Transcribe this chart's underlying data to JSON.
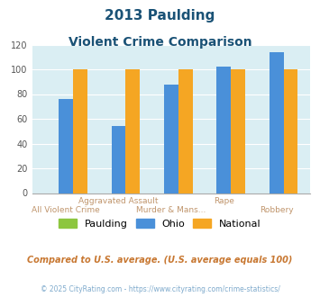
{
  "title_line1": "2013 Paulding",
  "title_line2": "Violent Crime Comparison",
  "ohio_vals": [
    76,
    54,
    88,
    102,
    114
  ],
  "national_vals": [
    100,
    100,
    100,
    100,
    100
  ],
  "paulding_vals": [
    0,
    0,
    0,
    0,
    0
  ],
  "color_paulding": "#8dc63f",
  "color_ohio": "#4a90d9",
  "color_national": "#f5a623",
  "ylim": [
    0,
    120
  ],
  "yticks": [
    0,
    20,
    40,
    60,
    80,
    100,
    120
  ],
  "bg_color": "#daeef3",
  "title_color": "#1a5276",
  "label_top_color": "#c0956c",
  "label_bottom_color": "#c0956c",
  "footer_text": "Compared to U.S. average. (U.S. average equals 100)",
  "copyright_text": "© 2025 CityRating.com - https://www.cityrating.com/crime-statistics/",
  "legend_labels": [
    "Paulding",
    "Ohio",
    "National"
  ],
  "top_row_labels": [
    "",
    "Aggravated Assault",
    "",
    "Rape",
    ""
  ],
  "bottom_row_labels": [
    "All Violent Crime",
    "",
    "Murder & Mans...",
    "",
    "Robbery"
  ]
}
